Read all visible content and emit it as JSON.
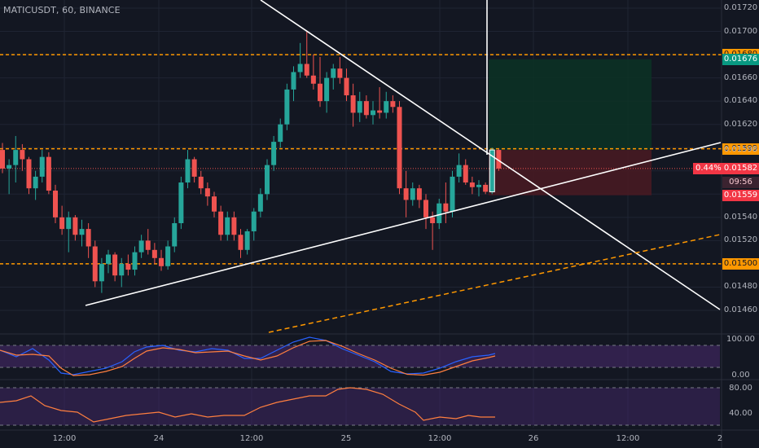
{
  "header": {
    "symbol": "MATICUSDT, 60, BINANCE"
  },
  "colors": {
    "background": "#131722",
    "bull": "#26a69a",
    "bear": "#ef5350",
    "orange": "#ff9800",
    "green_tag": "#089981",
    "red_tag": "#f23645",
    "blue_line": "#2962ff",
    "orange_line": "#ff7f3f",
    "panel_purple": "#4a2a70"
  },
  "price_scale": {
    "ticks": [
      "0.01720",
      "0.01700",
      "0.01680",
      "0.01660",
      "0.01640",
      "0.01620",
      "0.01600",
      "0.01580",
      "0.01560",
      "0.01540",
      "0.01520",
      "0.01500",
      "0.01480",
      "0.01460"
    ],
    "tags": [
      {
        "label": "0.01680",
        "price": 0.0168,
        "style": "orange"
      },
      {
        "label": "0.01676",
        "price": 0.01676,
        "style": "green"
      },
      {
        "label": "0.01660",
        "price": 0.0166,
        "style": "plain"
      },
      {
        "label": "0.01599",
        "price": 0.01599,
        "style": "orange"
      },
      {
        "label": "0.01598",
        "price": 0.01598,
        "style": "plain"
      },
      {
        "label": "0.01582",
        "price": 0.01582,
        "style": "red"
      },
      {
        "label": "09:56",
        "price": 0.0157,
        "style": "dark"
      },
      {
        "label": "0.01559",
        "price": 0.01559,
        "style": "red"
      },
      {
        "label": "0.01500",
        "price": 0.015,
        "style": "orange"
      }
    ],
    "percent_tag": "0.44%"
  },
  "time_axis": {
    "labels": [
      "12:00",
      "24",
      "12:00",
      "25",
      "12:00",
      "26",
      "12:00",
      "2"
    ]
  },
  "stoch_rsi": {
    "ticks": [
      "100.00",
      "0.00"
    ]
  },
  "rsi": {
    "ticks": [
      "80.00",
      "40.00"
    ]
  },
  "chart_data": {
    "type": "candlestick",
    "title": "MATICUSDT, 60, BINANCE",
    "ylim": [
      0.0145,
      0.0173
    ],
    "series": [
      {
        "name": "MATICUSDT",
        "ohlc": [
          [
            0.01598,
            0.01604,
            0.01578,
            0.01582
          ],
          [
            0.01582,
            0.0159,
            0.0156,
            0.01585
          ],
          [
            0.01585,
            0.0161,
            0.0157,
            0.01598
          ],
          [
            0.01598,
            0.01603,
            0.0158,
            0.0159
          ],
          [
            0.0159,
            0.01592,
            0.0156,
            0.01565
          ],
          [
            0.01565,
            0.0158,
            0.01555,
            0.01575
          ],
          [
            0.01575,
            0.01598,
            0.0157,
            0.01592
          ],
          [
            0.01592,
            0.01596,
            0.0156,
            0.01563
          ],
          [
            0.01563,
            0.01568,
            0.01535,
            0.0154
          ],
          [
            0.0154,
            0.0155,
            0.01525,
            0.0153
          ],
          [
            0.0153,
            0.01545,
            0.0151,
            0.0154
          ],
          [
            0.0154,
            0.01542,
            0.0152,
            0.01525
          ],
          [
            0.01525,
            0.01538,
            0.01515,
            0.0153
          ],
          [
            0.0153,
            0.01535,
            0.01505,
            0.01515
          ],
          [
            0.01515,
            0.0152,
            0.0148,
            0.01485
          ],
          [
            0.01485,
            0.01505,
            0.01475,
            0.015
          ],
          [
            0.015,
            0.01512,
            0.01492,
            0.01508
          ],
          [
            0.01508,
            0.0151,
            0.01485,
            0.0149
          ],
          [
            0.0149,
            0.01505,
            0.0148,
            0.015
          ],
          [
            0.015,
            0.01508,
            0.0149,
            0.01495
          ],
          [
            0.01495,
            0.01515,
            0.0149,
            0.0151
          ],
          [
            0.0151,
            0.01525,
            0.01505,
            0.0152
          ],
          [
            0.0152,
            0.0153,
            0.01508,
            0.01512
          ],
          [
            0.01512,
            0.01518,
            0.015,
            0.01505
          ],
          [
            0.01505,
            0.01512,
            0.01494,
            0.01498
          ],
          [
            0.01498,
            0.0152,
            0.01495,
            0.01515
          ],
          [
            0.01515,
            0.0154,
            0.0151,
            0.01535
          ],
          [
            0.01535,
            0.01575,
            0.0153,
            0.0157
          ],
          [
            0.0157,
            0.01598,
            0.01565,
            0.0159
          ],
          [
            0.0159,
            0.01592,
            0.0157,
            0.01575
          ],
          [
            0.01575,
            0.0158,
            0.0156,
            0.01565
          ],
          [
            0.01565,
            0.0157,
            0.0155,
            0.01558
          ],
          [
            0.01558,
            0.01562,
            0.0154,
            0.01545
          ],
          [
            0.01545,
            0.0155,
            0.0152,
            0.01525
          ],
          [
            0.01525,
            0.01545,
            0.0152,
            0.0154
          ],
          [
            0.0154,
            0.01545,
            0.0152,
            0.01525
          ],
          [
            0.01525,
            0.0153,
            0.01505,
            0.01512
          ],
          [
            0.01512,
            0.0153,
            0.01508,
            0.01528
          ],
          [
            0.01528,
            0.01548,
            0.0152,
            0.01545
          ],
          [
            0.01545,
            0.01565,
            0.0154,
            0.0156
          ],
          [
            0.0156,
            0.0159,
            0.01555,
            0.01585
          ],
          [
            0.01585,
            0.0161,
            0.0158,
            0.01605
          ],
          [
            0.01605,
            0.01625,
            0.016,
            0.0162
          ],
          [
            0.0162,
            0.01655,
            0.01615,
            0.0165
          ],
          [
            0.0165,
            0.0167,
            0.0164,
            0.01665
          ],
          [
            0.01665,
            0.0169,
            0.0166,
            0.01672
          ],
          [
            0.01672,
            0.017,
            0.0166,
            0.01662
          ],
          [
            0.01662,
            0.0168,
            0.0165,
            0.01655
          ],
          [
            0.01655,
            0.01678,
            0.01635,
            0.0164
          ],
          [
            0.0164,
            0.01665,
            0.0163,
            0.0166
          ],
          [
            0.0166,
            0.01672,
            0.0165,
            0.01668
          ],
          [
            0.01668,
            0.01678,
            0.01655,
            0.0166
          ],
          [
            0.0166,
            0.01668,
            0.0164,
            0.01645
          ],
          [
            0.01645,
            0.01655,
            0.01618,
            0.0163
          ],
          [
            0.0163,
            0.01648,
            0.01622,
            0.0164
          ],
          [
            0.0164,
            0.01645,
            0.01625,
            0.01628
          ],
          [
            0.01628,
            0.0164,
            0.0162,
            0.01632
          ],
          [
            0.01632,
            0.01652,
            0.01625,
            0.0163
          ],
          [
            0.0163,
            0.01648,
            0.01625,
            0.0164
          ],
          [
            0.0164,
            0.01645,
            0.0163,
            0.01635
          ],
          [
            0.01635,
            0.0164,
            0.0156,
            0.01565
          ],
          [
            0.01565,
            0.0158,
            0.0154,
            0.01555
          ],
          [
            0.01555,
            0.0157,
            0.0155,
            0.01565
          ],
          [
            0.01565,
            0.01568,
            0.01548,
            0.01555
          ],
          [
            0.01555,
            0.0156,
            0.0153,
            0.0154
          ],
          [
            0.0154,
            0.01545,
            0.01512,
            0.01535
          ],
          [
            0.01535,
            0.01556,
            0.0153,
            0.01552
          ],
          [
            0.01552,
            0.0157,
            0.01535,
            0.01545
          ],
          [
            0.01545,
            0.0158,
            0.0154,
            0.01575
          ],
          [
            0.01575,
            0.01595,
            0.0157,
            0.01585
          ],
          [
            0.01585,
            0.0159,
            0.01568,
            0.0157
          ],
          [
            0.0157,
            0.01575,
            0.0156,
            0.01566
          ],
          [
            0.01566,
            0.01572,
            0.01558,
            0.01568
          ],
          [
            0.01568,
            0.0157,
            0.0156,
            0.01562
          ],
          [
            0.01562,
            0.016,
            0.0156,
            0.01598
          ],
          [
            0.01598,
            0.01599,
            0.0158,
            0.01582
          ]
        ]
      }
    ]
  }
}
